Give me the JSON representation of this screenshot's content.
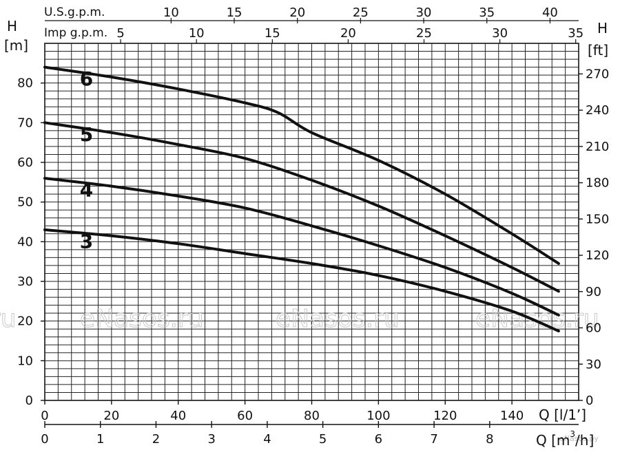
{
  "chart_data": {
    "type": "line",
    "ylabel_left_symbol": "H",
    "ylabel_left_unit": "[m]",
    "ylabel_right_symbol": "H",
    "ylabel_right_unit": "[ft]",
    "xlabel_lpm": "Q [l/1’]",
    "xlabel_m3h": "Q [m",
    "xlabel_m3h_sup": "3",
    "xlabel_m3h_tail": "/h]",
    "top_axis_usgpm_label": "U.S.g.p.m.",
    "top_axis_imp_label": "Imp g.p.m.",
    "xlim_lpm": [
      0,
      160
    ],
    "ylim_m": [
      0,
      90
    ],
    "y_ticks_m": [
      "0",
      "10",
      "20",
      "30",
      "40",
      "50",
      "60",
      "70",
      "80"
    ],
    "y_ticks_ft": [
      "0",
      "30",
      "60",
      "90",
      "120",
      "150",
      "180",
      "210",
      "240",
      "270"
    ],
    "x_ticks_lpm": [
      "0",
      "20",
      "40",
      "60",
      "80",
      "100",
      "120",
      "140"
    ],
    "x_ticks_m3h": [
      "0",
      "1",
      "2",
      "3",
      "4",
      "5",
      "6",
      "7",
      "8"
    ],
    "usgpm_ticks": [
      "10",
      "15",
      "20",
      "25",
      "30",
      "35",
      "40"
    ],
    "imp_ticks": [
      "5",
      "10",
      "15",
      "20",
      "25",
      "30",
      "35"
    ],
    "grid": true,
    "series": [
      {
        "name": "6",
        "x": [
          0,
          20,
          40,
          60,
          70,
          80,
          100,
          120,
          140,
          154
        ],
        "y": [
          84,
          81.5,
          78.5,
          75,
          72.5,
          67.5,
          60.5,
          52,
          42,
          34.5
        ]
      },
      {
        "name": "5",
        "x": [
          0,
          20,
          40,
          60,
          80,
          100,
          120,
          140,
          154
        ],
        "y": [
          70,
          67.5,
          64.5,
          61,
          55.5,
          49,
          41.5,
          33.5,
          27.5
        ]
      },
      {
        "name": "4",
        "x": [
          0,
          20,
          40,
          60,
          80,
          100,
          120,
          140,
          154
        ],
        "y": [
          56,
          54,
          51.5,
          48.5,
          44,
          39,
          33.5,
          27,
          21.5
        ]
      },
      {
        "name": "3",
        "x": [
          0,
          20,
          40,
          60,
          80,
          100,
          120,
          140,
          154
        ],
        "y": [
          43,
          41.5,
          39.5,
          37,
          34.5,
          31.5,
          27.5,
          22.5,
          17.5
        ]
      }
    ]
  },
  "watermarks": [
    "eNasos.ru",
    "eNasos.ru",
    "eNasos.ru",
    "ru",
    "eNasos.ru",
    "eNasos.ру"
  ]
}
